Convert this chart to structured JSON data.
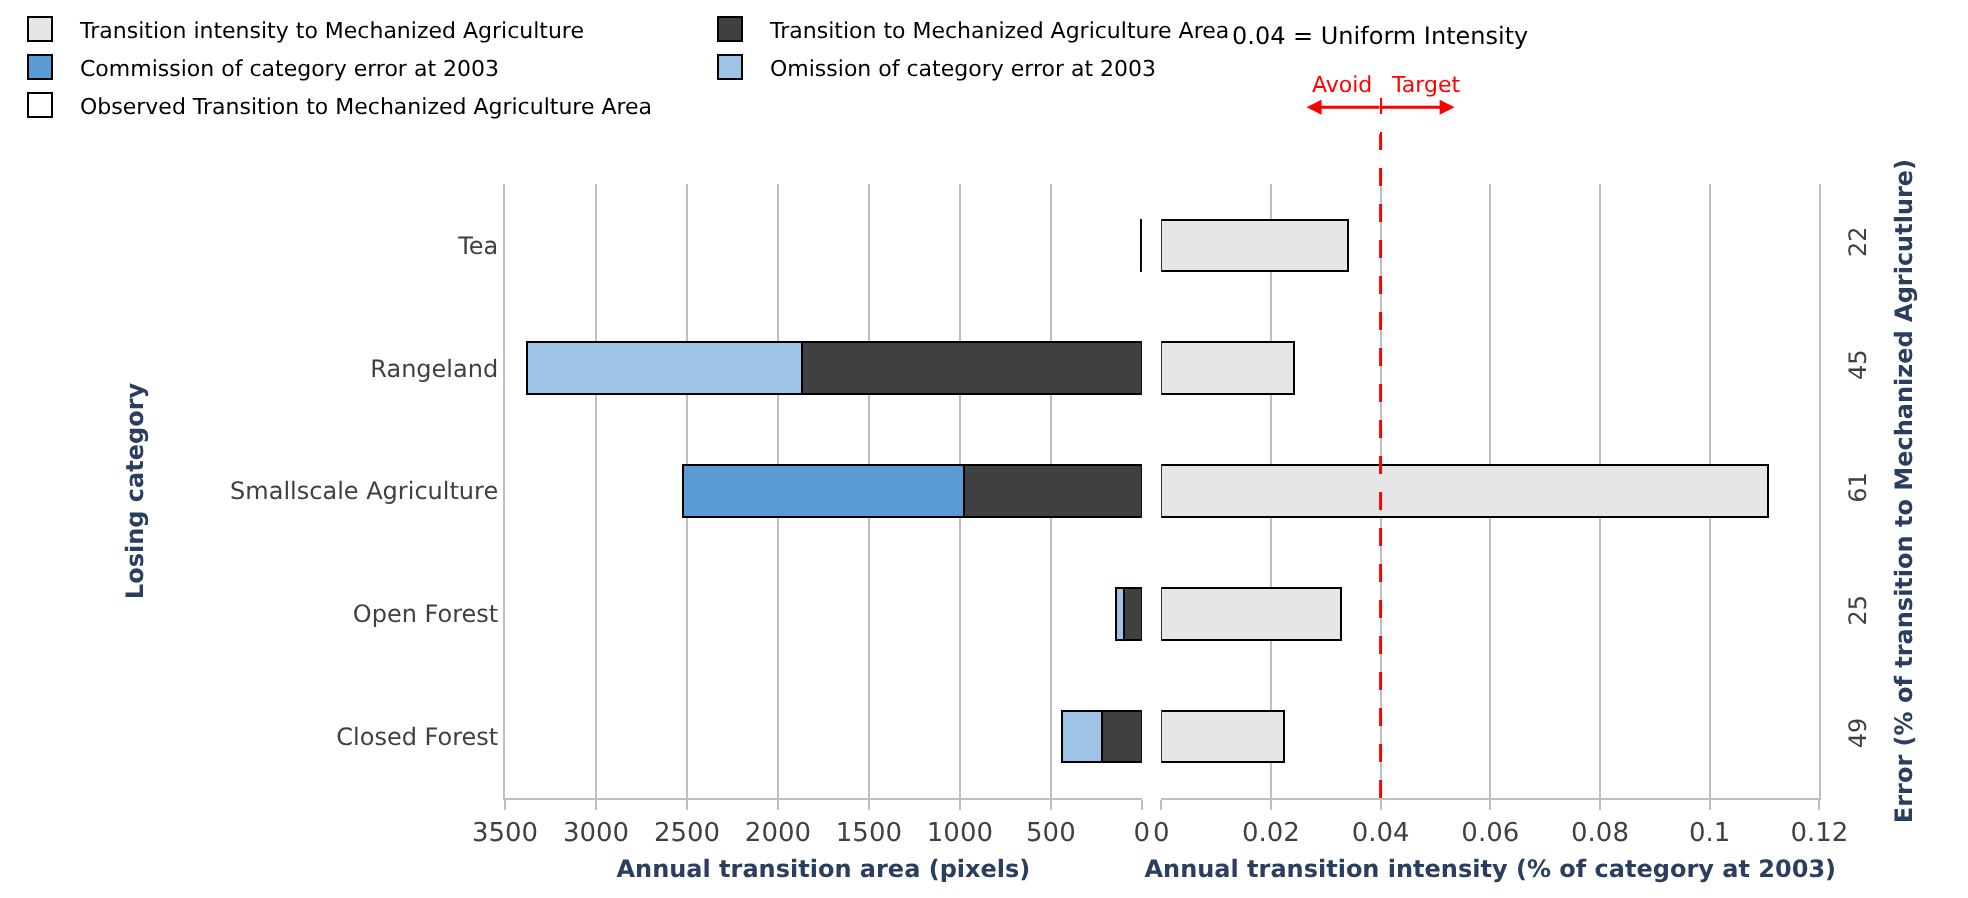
{
  "chart_data": [
    {
      "type": "bar",
      "orientation": "horizontal",
      "stacked": true,
      "categories": [
        "Tea",
        "Rangeland",
        "Smallscale Agriculture",
        "Open Forest",
        "Closed Forest"
      ],
      "ylabel": "Losing category",
      "xlabel": "Annual transition area (pixels)",
      "xlim": [
        3500,
        0
      ],
      "xticks": [
        3500,
        3000,
        2500,
        2000,
        1500,
        1000,
        500,
        0
      ],
      "grid": "x",
      "legend": "top left",
      "series": [
        {
          "name": "Transition to Mechanized Agriculture Area",
          "color": "#404040",
          "values": [
            5,
            1870,
            980,
            100,
            220
          ]
        },
        {
          "name": "Commission of category error at 2003",
          "color": "#5b9bd5",
          "values": [
            null,
            null,
            1540,
            null,
            null
          ]
        },
        {
          "name": "Omission of category error at 2003",
          "color": "#9dc3e6",
          "values": [
            null,
            1510,
            null,
            40,
            220
          ]
        },
        {
          "name": "Observed Transition to Mechanized Agriculture Area",
          "color": "#ffffff",
          "values": [
            null,
            null,
            null,
            null,
            null
          ]
        }
      ]
    },
    {
      "type": "bar",
      "orientation": "horizontal",
      "y2_categories": [
        "22",
        "45",
        "61",
        "25",
        "49"
      ],
      "xlabel": "Annual transition intensity (% of category at 2003)",
      "y2label": "Error (% of transition to Mechanized Agricutlure)",
      "xlim": [
        0,
        0.12
      ],
      "xticks": [
        0,
        0.02,
        0.04,
        0.06,
        0.08,
        0.1,
        0.12
      ],
      "grid": "x",
      "legend": "top left",
      "series": [
        {
          "name": "Transition intensity to Mechanized Agriculture",
          "color": "#e6e6e6",
          "values": [
            0.0341,
            0.0242,
            0.1106,
            0.0328,
            0.0224
          ]
        }
      ],
      "ref_lines": [
        {
          "axis": "x",
          "value": 0.04,
          "label": "0.04 = Uniform Intensity",
          "color": "#ff0000",
          "line_style": "dashed"
        }
      ],
      "annotations": [
        "Avoid",
        "Target"
      ]
    }
  ]
}
